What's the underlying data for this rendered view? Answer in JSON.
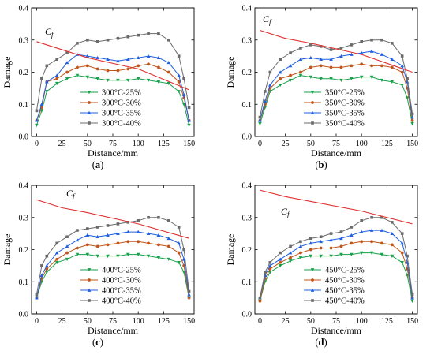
{
  "figure": {
    "panels": [
      {
        "id": "a",
        "caption_open": "(",
        "caption_bold": "a",
        "caption_close": ")",
        "temperature": 300
      },
      {
        "id": "b",
        "caption_open": "(",
        "caption_bold": "b",
        "caption_close": ")",
        "temperature": 350
      },
      {
        "id": "c",
        "caption_open": "(",
        "caption_bold": "c",
        "caption_close": ")",
        "temperature": 400
      },
      {
        "id": "d",
        "caption_open": "(",
        "caption_bold": "d",
        "caption_close": ")",
        "temperature": 450
      }
    ]
  },
  "colors": {
    "s25": "#17a14b",
    "s30": "#c1561b",
    "s35": "#1f5fe0",
    "s40": "#6b6b6b",
    "cf": "#e03030"
  },
  "chart_data": [
    {
      "type": "line",
      "panel": "a",
      "xlabel": "Distance/mm",
      "ylabel": "Damage",
      "xlim": [
        -5,
        155
      ],
      "ylim": [
        0,
        0.4
      ],
      "xticks": [
        "0",
        "25",
        "50",
        "75",
        "100",
        "125",
        "150"
      ],
      "yticks": [
        "0.0",
        "0.1",
        "0.2",
        "0.3",
        "0.4"
      ],
      "legend_position": "bottom-center",
      "cf_label": "C",
      "cf_sub": "f",
      "cf_line": {
        "x": [
          0,
          50,
          100,
          150
        ],
        "y": [
          0.295,
          0.245,
          0.21,
          0.145
        ]
      },
      "series": [
        {
          "name": "300°C-25%",
          "key": "s25",
          "marker": "triangle-down",
          "x": [
            0,
            5,
            10,
            20,
            30,
            40,
            50,
            60,
            70,
            80,
            90,
            100,
            110,
            120,
            130,
            140,
            145,
            150
          ],
          "y": [
            0.035,
            0.08,
            0.14,
            0.165,
            0.18,
            0.19,
            0.185,
            0.18,
            0.175,
            0.175,
            0.175,
            0.18,
            0.175,
            0.17,
            0.165,
            0.14,
            0.1,
            0.035
          ]
        },
        {
          "name": "300°C-30%",
          "key": "s30",
          "marker": "dot",
          "x": [
            0,
            5,
            10,
            20,
            30,
            40,
            50,
            60,
            70,
            80,
            90,
            100,
            110,
            120,
            130,
            140,
            145,
            150
          ],
          "y": [
            0.05,
            0.09,
            0.17,
            0.18,
            0.2,
            0.215,
            0.22,
            0.21,
            0.205,
            0.205,
            0.21,
            0.22,
            0.225,
            0.215,
            0.2,
            0.17,
            0.12,
            0.05
          ]
        },
        {
          "name": "300°C-35%",
          "key": "s35",
          "marker": "triangle-up",
          "x": [
            0,
            5,
            10,
            20,
            30,
            40,
            50,
            60,
            70,
            80,
            90,
            100,
            110,
            120,
            130,
            140,
            145,
            150
          ],
          "y": [
            0.05,
            0.1,
            0.17,
            0.19,
            0.23,
            0.255,
            0.25,
            0.245,
            0.24,
            0.235,
            0.24,
            0.245,
            0.25,
            0.245,
            0.23,
            0.19,
            0.13,
            0.05
          ]
        },
        {
          "name": "300°C-40%",
          "key": "s40",
          "marker": "square",
          "x": [
            0,
            5,
            10,
            20,
            30,
            40,
            50,
            60,
            70,
            80,
            90,
            100,
            110,
            120,
            130,
            140,
            145,
            150
          ],
          "y": [
            0.08,
            0.18,
            0.22,
            0.24,
            0.26,
            0.29,
            0.3,
            0.295,
            0.3,
            0.305,
            0.31,
            0.315,
            0.32,
            0.32,
            0.3,
            0.25,
            0.18,
            0.09
          ]
        }
      ]
    },
    {
      "type": "line",
      "panel": "b",
      "xlabel": "Distance/mm",
      "ylabel": "Damage",
      "xlim": [
        -5,
        155
      ],
      "ylim": [
        0,
        0.4
      ],
      "xticks": [
        "0",
        "25",
        "50",
        "75",
        "100",
        "125",
        "150"
      ],
      "yticks": [
        "0.0",
        "0.1",
        "0.2",
        "0.3",
        "0.4"
      ],
      "legend_position": "bottom-center",
      "cf_label": "C",
      "cf_sub": "f",
      "cf_line": {
        "x": [
          0,
          25,
          50,
          100,
          150
        ],
        "y": [
          0.33,
          0.305,
          0.29,
          0.255,
          0.2
        ]
      },
      "series": [
        {
          "name": "350°C-25%",
          "key": "s25",
          "marker": "triangle-down",
          "x": [
            0,
            5,
            10,
            20,
            30,
            40,
            50,
            60,
            70,
            80,
            90,
            100,
            110,
            120,
            130,
            140,
            145,
            150
          ],
          "y": [
            0.04,
            0.09,
            0.14,
            0.16,
            0.175,
            0.19,
            0.185,
            0.18,
            0.18,
            0.175,
            0.18,
            0.185,
            0.185,
            0.175,
            0.17,
            0.16,
            0.12,
            0.04
          ]
        },
        {
          "name": "350°C-30%",
          "key": "s30",
          "marker": "dot",
          "x": [
            0,
            5,
            10,
            20,
            30,
            40,
            50,
            60,
            70,
            80,
            90,
            100,
            110,
            120,
            130,
            140,
            145,
            150
          ],
          "y": [
            0.05,
            0.1,
            0.15,
            0.18,
            0.19,
            0.2,
            0.215,
            0.22,
            0.215,
            0.215,
            0.22,
            0.225,
            0.22,
            0.22,
            0.215,
            0.2,
            0.15,
            0.05
          ]
        },
        {
          "name": "350°C-35%",
          "key": "s35",
          "marker": "triangle-up",
          "x": [
            0,
            5,
            10,
            20,
            30,
            40,
            50,
            60,
            70,
            80,
            90,
            100,
            110,
            120,
            130,
            140,
            145,
            150
          ],
          "y": [
            0.05,
            0.11,
            0.16,
            0.2,
            0.22,
            0.24,
            0.245,
            0.24,
            0.24,
            0.25,
            0.255,
            0.26,
            0.265,
            0.255,
            0.24,
            0.22,
            0.17,
            0.06
          ]
        },
        {
          "name": "350°C-40%",
          "key": "s40",
          "marker": "square",
          "x": [
            0,
            5,
            10,
            20,
            30,
            40,
            50,
            60,
            70,
            80,
            90,
            100,
            110,
            120,
            130,
            140,
            145,
            150
          ],
          "y": [
            0.06,
            0.14,
            0.2,
            0.24,
            0.26,
            0.275,
            0.285,
            0.28,
            0.27,
            0.275,
            0.285,
            0.295,
            0.3,
            0.3,
            0.29,
            0.25,
            0.18,
            0.07
          ]
        }
      ]
    },
    {
      "type": "line",
      "panel": "c",
      "xlabel": "Distance/mm",
      "ylabel": "Damage",
      "xlim": [
        -5,
        155
      ],
      "ylim": [
        0,
        0.4
      ],
      "xticks": [
        "0",
        "25",
        "50",
        "75",
        "100",
        "125",
        "150"
      ],
      "yticks": [
        "0.0",
        "0.1",
        "0.2",
        "0.3",
        "0.4"
      ],
      "legend_position": "bottom-center",
      "cf_label": "C",
      "cf_sub": "f",
      "cf_line": {
        "x": [
          0,
          25,
          50,
          100,
          150
        ],
        "y": [
          0.355,
          0.33,
          0.315,
          0.28,
          0.235
        ]
      },
      "series": [
        {
          "name": "400°C-25%",
          "key": "s25",
          "marker": "triangle-down",
          "x": [
            0,
            5,
            10,
            20,
            30,
            40,
            50,
            60,
            70,
            80,
            90,
            100,
            110,
            120,
            130,
            140,
            145,
            150
          ],
          "y": [
            0.05,
            0.1,
            0.13,
            0.16,
            0.17,
            0.185,
            0.185,
            0.18,
            0.18,
            0.18,
            0.185,
            0.185,
            0.18,
            0.175,
            0.17,
            0.16,
            0.13,
            0.05
          ]
        },
        {
          "name": "400°C-30%",
          "key": "s30",
          "marker": "dot",
          "x": [
            0,
            5,
            10,
            20,
            30,
            40,
            50,
            60,
            70,
            80,
            90,
            100,
            110,
            120,
            130,
            140,
            145,
            150
          ],
          "y": [
            0.05,
            0.11,
            0.14,
            0.17,
            0.19,
            0.205,
            0.215,
            0.21,
            0.215,
            0.22,
            0.225,
            0.225,
            0.22,
            0.215,
            0.21,
            0.19,
            0.15,
            0.05
          ]
        },
        {
          "name": "400°C-35%",
          "key": "s35",
          "marker": "triangle-up",
          "x": [
            0,
            5,
            10,
            20,
            30,
            40,
            50,
            60,
            70,
            80,
            90,
            100,
            110,
            120,
            130,
            140,
            145,
            150
          ],
          "y": [
            0.05,
            0.12,
            0.15,
            0.19,
            0.21,
            0.23,
            0.245,
            0.24,
            0.245,
            0.25,
            0.255,
            0.255,
            0.25,
            0.245,
            0.235,
            0.22,
            0.17,
            0.06
          ]
        },
        {
          "name": "400°C-40%",
          "key": "s40",
          "marker": "square",
          "x": [
            0,
            5,
            10,
            20,
            30,
            40,
            50,
            60,
            70,
            80,
            90,
            100,
            110,
            120,
            130,
            140,
            145,
            150
          ],
          "y": [
            0.06,
            0.15,
            0.18,
            0.22,
            0.24,
            0.26,
            0.265,
            0.27,
            0.275,
            0.28,
            0.285,
            0.29,
            0.3,
            0.3,
            0.29,
            0.27,
            0.2,
            0.07
          ]
        }
      ]
    },
    {
      "type": "line",
      "panel": "d",
      "xlabel": "Distance/mm",
      "ylabel": "Damage",
      "xlim": [
        -5,
        155
      ],
      "ylim": [
        0,
        0.4
      ],
      "xticks": [
        "0",
        "25",
        "50",
        "75",
        "100",
        "125",
        "150"
      ],
      "yticks": [
        "0.0",
        "0.1",
        "0.2",
        "0.3",
        "0.4"
      ],
      "legend_position": "bottom-center",
      "cf_label": "C",
      "cf_sub": "f",
      "cf_line": {
        "x": [
          0,
          25,
          50,
          100,
          150
        ],
        "y": [
          0.385,
          0.365,
          0.35,
          0.32,
          0.28
        ]
      },
      "series": [
        {
          "name": "450°C-25%",
          "key": "s25",
          "marker": "triangle-down",
          "x": [
            0,
            5,
            10,
            20,
            30,
            40,
            50,
            60,
            70,
            80,
            90,
            100,
            110,
            120,
            130,
            140,
            145,
            150
          ],
          "y": [
            0.04,
            0.1,
            0.13,
            0.15,
            0.165,
            0.175,
            0.18,
            0.18,
            0.18,
            0.185,
            0.185,
            0.19,
            0.19,
            0.185,
            0.18,
            0.16,
            0.12,
            0.04
          ]
        },
        {
          "name": "450°C-30%",
          "key": "s30",
          "marker": "dot",
          "x": [
            0,
            5,
            10,
            20,
            30,
            40,
            50,
            60,
            70,
            80,
            90,
            100,
            110,
            120,
            130,
            140,
            145,
            150
          ],
          "y": [
            0.04,
            0.11,
            0.14,
            0.16,
            0.175,
            0.19,
            0.2,
            0.205,
            0.205,
            0.21,
            0.22,
            0.225,
            0.225,
            0.22,
            0.215,
            0.19,
            0.14,
            0.05
          ]
        },
        {
          "name": "450°C-35%",
          "key": "s35",
          "marker": "triangle-up",
          "x": [
            0,
            5,
            10,
            20,
            30,
            40,
            50,
            60,
            70,
            80,
            90,
            100,
            110,
            120,
            130,
            140,
            145,
            150
          ],
          "y": [
            0.05,
            0.12,
            0.15,
            0.17,
            0.19,
            0.21,
            0.22,
            0.225,
            0.23,
            0.235,
            0.245,
            0.255,
            0.26,
            0.26,
            0.25,
            0.22,
            0.16,
            0.05
          ]
        },
        {
          "name": "450°C-40%",
          "key": "s40",
          "marker": "square",
          "x": [
            0,
            5,
            10,
            20,
            30,
            40,
            50,
            60,
            70,
            80,
            90,
            100,
            110,
            120,
            130,
            140,
            145,
            150
          ],
          "y": [
            0.05,
            0.13,
            0.16,
            0.19,
            0.21,
            0.225,
            0.235,
            0.24,
            0.25,
            0.255,
            0.27,
            0.29,
            0.3,
            0.3,
            0.285,
            0.25,
            0.18,
            0.06
          ]
        }
      ]
    }
  ]
}
